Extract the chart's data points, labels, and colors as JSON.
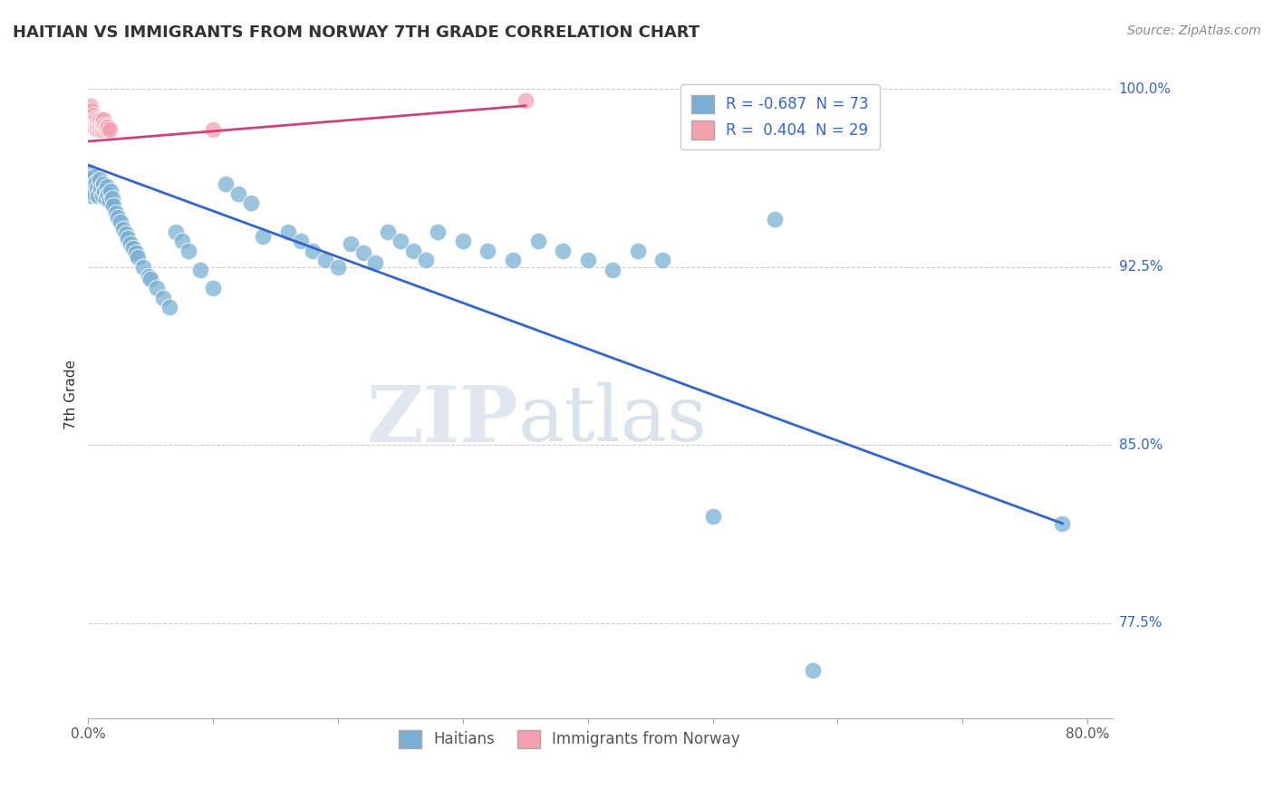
{
  "title": "HAITIAN VS IMMIGRANTS FROM NORWAY 7TH GRADE CORRELATION CHART",
  "source": "Source: ZipAtlas.com",
  "ylabel": "7th Grade",
  "xlim": [
    0.0,
    0.82
  ],
  "ylim": [
    0.735,
    1.008
  ],
  "grid_color": "#cccccc",
  "bg_color": "#ffffff",
  "blue_color": "#7ab0d4",
  "blue_line_color": "#3366cc",
  "pink_color": "#f4a0b0",
  "pink_line_color": "#cc4477",
  "legend_R_blue": "-0.687",
  "legend_N_blue": "73",
  "legend_R_pink": "0.404",
  "legend_N_pink": "29",
  "legend_label_blue": "Haitians",
  "legend_label_pink": "Immigrants from Norway",
  "blue_line_x": [
    0.0,
    0.78
  ],
  "blue_line_y": [
    0.968,
    0.817
  ],
  "pink_line_x": [
    0.0,
    0.35
  ],
  "pink_line_y": [
    0.978,
    0.993
  ],
  "blue_scatter_x": [
    0.001,
    0.002,
    0.003,
    0.003,
    0.004,
    0.005,
    0.005,
    0.006,
    0.007,
    0.008,
    0.009,
    0.01,
    0.011,
    0.012,
    0.013,
    0.014,
    0.015,
    0.016,
    0.017,
    0.018,
    0.019,
    0.02,
    0.022,
    0.024,
    0.026,
    0.028,
    0.03,
    0.032,
    0.034,
    0.036,
    0.038,
    0.04,
    0.044,
    0.048,
    0.05,
    0.055,
    0.06,
    0.065,
    0.07,
    0.075,
    0.08,
    0.09,
    0.1,
    0.11,
    0.12,
    0.13,
    0.14,
    0.16,
    0.17,
    0.18,
    0.19,
    0.2,
    0.21,
    0.22,
    0.23,
    0.24,
    0.25,
    0.26,
    0.27,
    0.28,
    0.3,
    0.32,
    0.34,
    0.36,
    0.38,
    0.4,
    0.42,
    0.44,
    0.46,
    0.5,
    0.55,
    0.58,
    0.78
  ],
  "blue_scatter_y": [
    0.965,
    0.962,
    0.958,
    0.955,
    0.963,
    0.96,
    0.956,
    0.961,
    0.958,
    0.955,
    0.962,
    0.958,
    0.955,
    0.96,
    0.957,
    0.954,
    0.959,
    0.956,
    0.953,
    0.957,
    0.954,
    0.951,
    0.948,
    0.946,
    0.944,
    0.941,
    0.939,
    0.937,
    0.935,
    0.933,
    0.931,
    0.929,
    0.925,
    0.921,
    0.92,
    0.916,
    0.912,
    0.908,
    0.94,
    0.936,
    0.932,
    0.924,
    0.916,
    0.96,
    0.956,
    0.952,
    0.938,
    0.94,
    0.936,
    0.932,
    0.928,
    0.925,
    0.935,
    0.931,
    0.927,
    0.94,
    0.936,
    0.932,
    0.928,
    0.94,
    0.936,
    0.932,
    0.928,
    0.936,
    0.932,
    0.928,
    0.924,
    0.932,
    0.928,
    0.82,
    0.945,
    0.755,
    0.817
  ],
  "pink_scatter_x": [
    0.001,
    0.002,
    0.003,
    0.003,
    0.004,
    0.004,
    0.005,
    0.005,
    0.006,
    0.006,
    0.007,
    0.007,
    0.008,
    0.008,
    0.009,
    0.009,
    0.01,
    0.01,
    0.011,
    0.011,
    0.012,
    0.012,
    0.013,
    0.014,
    0.015,
    0.016,
    0.017,
    0.1,
    0.35
  ],
  "pink_scatter_y": [
    0.99,
    0.993,
    0.988,
    0.991,
    0.986,
    0.989,
    0.984,
    0.987,
    0.985,
    0.988,
    0.983,
    0.986,
    0.984,
    0.987,
    0.983,
    0.986,
    0.984,
    0.987,
    0.983,
    0.986,
    0.984,
    0.987,
    0.985,
    0.984,
    0.983,
    0.984,
    0.983,
    0.983,
    0.995
  ]
}
